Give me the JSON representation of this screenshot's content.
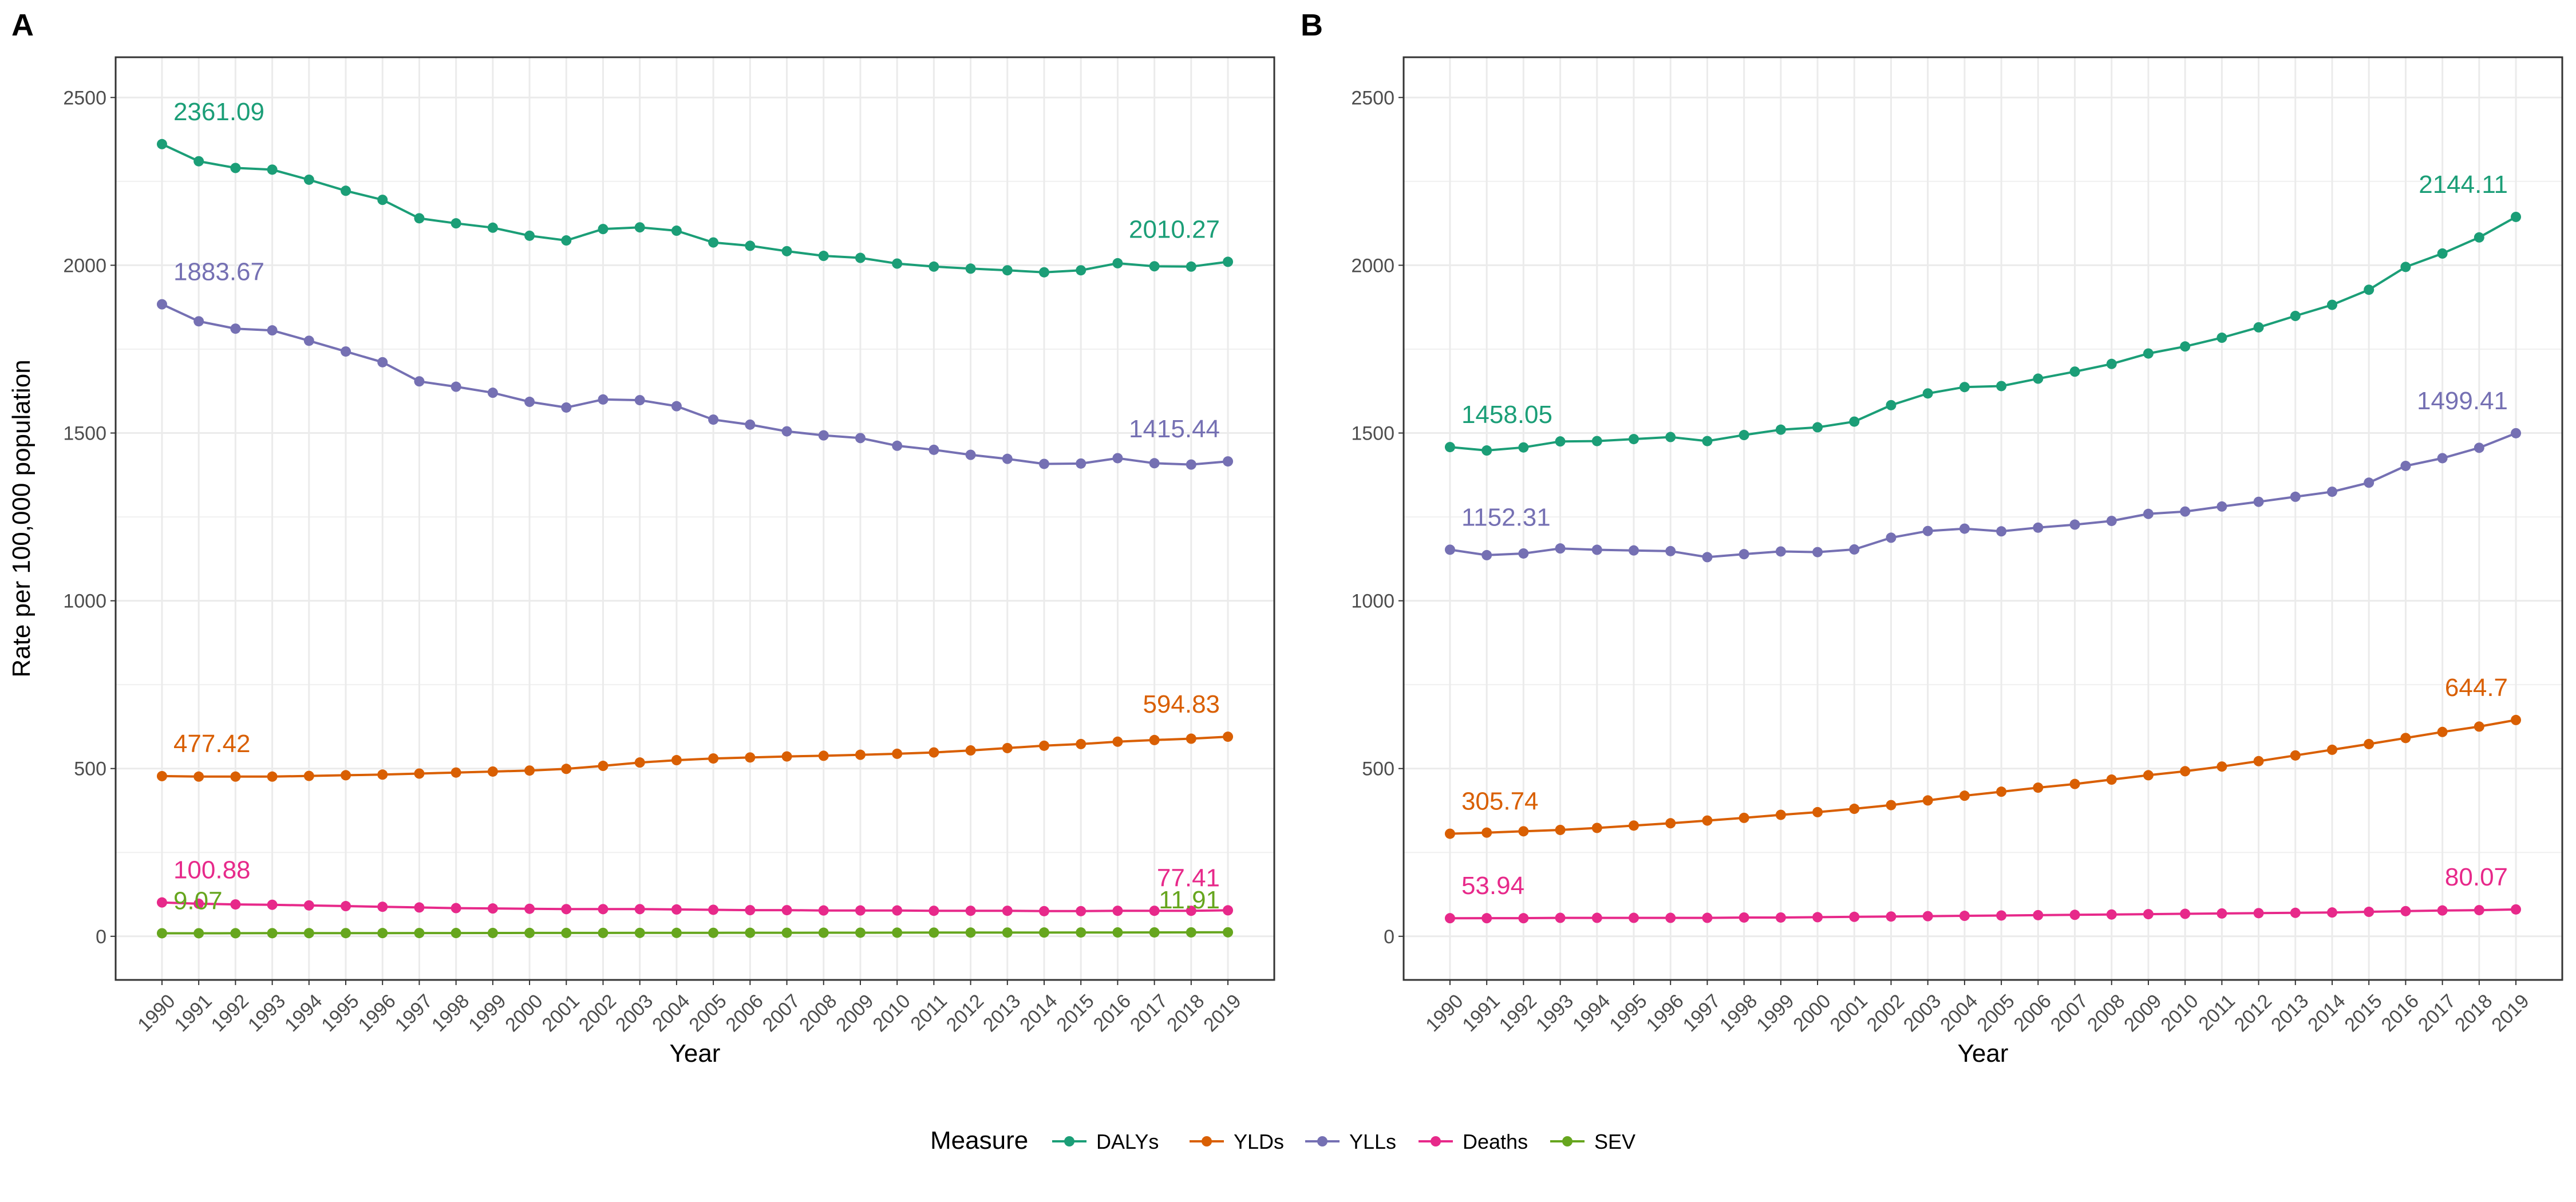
{
  "years": [
    "1990",
    "1991",
    "1992",
    "1993",
    "1994",
    "1995",
    "1996",
    "1997",
    "1998",
    "1999",
    "2000",
    "2001",
    "2002",
    "2003",
    "2004",
    "2005",
    "2006",
    "2007",
    "2008",
    "2009",
    "2010",
    "2011",
    "2012",
    "2013",
    "2014",
    "2015",
    "2016",
    "2017",
    "2018",
    "2019"
  ],
  "legend": {
    "title": "Measure",
    "items": [
      {
        "name": "DALYs",
        "color": "#1b9e77"
      },
      {
        "name": "YLDs",
        "color": "#d95f02"
      },
      {
        "name": "YLLs",
        "color": "#7570b3"
      },
      {
        "name": "Deaths",
        "color": "#e7298a"
      },
      {
        "name": "SEV",
        "color": "#66a61e"
      }
    ]
  },
  "chart_data": [
    {
      "type": "line",
      "tag": "A",
      "xlabel": "Year",
      "ylabel": "Rate per 100,000 population",
      "ylim": [
        -130,
        2620
      ],
      "yticks": [
        0,
        500,
        1000,
        1500,
        2000,
        2500
      ],
      "grid": true,
      "legend_position": "bottom",
      "series": [
        {
          "name": "DALYs",
          "color": "#1b9e77",
          "values": [
            2361.09,
            2310,
            2290,
            2285,
            2255,
            2222,
            2195,
            2140,
            2125,
            2112,
            2088,
            2074,
            2108,
            2113,
            2103,
            2068,
            2058,
            2042,
            2028,
            2022,
            2005,
            1996,
            1990,
            1985,
            1979,
            1985,
            2006,
            1997,
            1996,
            2010.27
          ],
          "start_label": "2361.09",
          "end_label": "2010.27"
        },
        {
          "name": "YLLs",
          "color": "#7570b3",
          "values": [
            1883.67,
            1833,
            1811,
            1806,
            1775,
            1743,
            1711,
            1654,
            1638,
            1620,
            1593,
            1576,
            1600,
            1598,
            1580,
            1540,
            1525,
            1505,
            1493,
            1485,
            1462,
            1450,
            1435,
            1423,
            1408,
            1409,
            1425,
            1410,
            1406,
            1415.44
          ],
          "start_label": "1883.67",
          "end_label": "1415.44"
        },
        {
          "name": "YLDs",
          "color": "#d95f02",
          "values": [
            477.42,
            476,
            476,
            476,
            478,
            480,
            482,
            485,
            488,
            491,
            494,
            499,
            508,
            518,
            525,
            530,
            533,
            536,
            538,
            541,
            544,
            548,
            554,
            561,
            568,
            573,
            580,
            585,
            589,
            594.83
          ],
          "start_label": "477.42",
          "end_label": "594.83"
        },
        {
          "name": "Deaths",
          "color": "#e7298a",
          "values": [
            100.88,
            97,
            95,
            94,
            92,
            90,
            88,
            86,
            84,
            83,
            82,
            81,
            81,
            81,
            80,
            79,
            78,
            78,
            77,
            77,
            77,
            76,
            76,
            76,
            75,
            75,
            76,
            76,
            76,
            77.41
          ],
          "start_label": "100.88",
          "end_label": "77.41"
        },
        {
          "name": "SEV",
          "color": "#66a61e",
          "values": [
            9.07,
            9.1,
            9.2,
            9.3,
            9.4,
            9.5,
            9.6,
            9.7,
            9.8,
            9.9,
            10.0,
            10.0,
            10.1,
            10.2,
            10.3,
            10.4,
            10.5,
            10.6,
            10.7,
            10.8,
            10.9,
            11.0,
            11.1,
            11.2,
            11.3,
            11.4,
            11.5,
            11.6,
            11.7,
            11.91
          ],
          "start_label": "9.07",
          "end_label": "11.91"
        }
      ]
    },
    {
      "type": "line",
      "tag": "B",
      "xlabel": "Year",
      "ylabel": "",
      "ylim": [
        -130,
        2620
      ],
      "yticks": [
        0,
        500,
        1000,
        1500,
        2000,
        2500
      ],
      "grid": true,
      "legend_position": "bottom",
      "series": [
        {
          "name": "DALYs",
          "color": "#1b9e77",
          "values": [
            1458.05,
            1448,
            1457,
            1475,
            1476,
            1482,
            1488,
            1476,
            1494,
            1510,
            1517,
            1534,
            1583,
            1618,
            1637,
            1640,
            1662,
            1683,
            1706,
            1737,
            1758,
            1784,
            1815,
            1849,
            1882,
            1927,
            1995,
            2035,
            2083,
            2144.11
          ],
          "start_label": "1458.05",
          "end_label": "2144.11"
        },
        {
          "name": "YLLs",
          "color": "#7570b3",
          "values": [
            1152.31,
            1136,
            1141,
            1156,
            1152,
            1150,
            1148,
            1130,
            1139,
            1147,
            1145,
            1153,
            1188,
            1208,
            1215,
            1207,
            1218,
            1227,
            1238,
            1259,
            1266,
            1281,
            1295,
            1310,
            1325,
            1352,
            1402,
            1425,
            1456,
            1499.41
          ],
          "start_label": "1152.31",
          "end_label": "1499.41"
        },
        {
          "name": "YLDs",
          "color": "#d95f02",
          "values": [
            305.74,
            309,
            313,
            317,
            323,
            330,
            337,
            345,
            353,
            362,
            370,
            380,
            391,
            405,
            419,
            431,
            443,
            454,
            467,
            480,
            492,
            506,
            522,
            539,
            556,
            573,
            591,
            609,
            625,
            644.7
          ],
          "start_label": "305.74",
          "end_label": "644.7"
        },
        {
          "name": "Deaths",
          "color": "#e7298a",
          "values": [
            53.94,
            54,
            54,
            55,
            55,
            55,
            55,
            55,
            56,
            56,
            57,
            58,
            59,
            60,
            61,
            62,
            63,
            64,
            65,
            66,
            67,
            68,
            69,
            70,
            71,
            73,
            75,
            77,
            78,
            80.07
          ],
          "start_label": "53.94",
          "end_label": "80.07"
        }
      ]
    }
  ]
}
